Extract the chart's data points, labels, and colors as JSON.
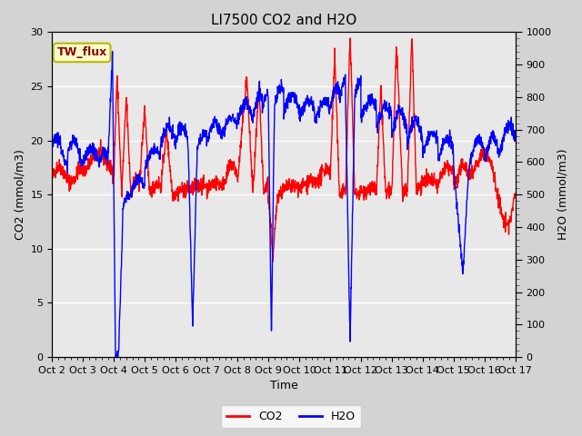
{
  "title": "LI7500 CO2 and H2O",
  "xlabel": "Time",
  "ylabel_left": "CO2 (mmol/m3)",
  "ylabel_right": "H2O (mmol/m3)",
  "xlim": [
    0,
    15
  ],
  "ylim_left": [
    0,
    30
  ],
  "ylim_right": [
    0,
    1000
  ],
  "yticks_left": [
    0,
    5,
    10,
    15,
    20,
    25,
    30
  ],
  "yticks_right": [
    0,
    100,
    200,
    300,
    400,
    500,
    600,
    700,
    800,
    900,
    1000
  ],
  "xtick_labels": [
    "Oct 2",
    "Oct 3",
    "Oct 4",
    "Oct 5",
    "Oct 6",
    "Oct 7",
    "Oct 8",
    "Oct 9",
    "Oct 10",
    "Oct 11",
    "Oct 12",
    "Oct 13",
    "Oct 14",
    "Oct 15",
    "Oct 16",
    "Oct 17"
  ],
  "co2_color": "#ff0000",
  "h2o_color": "#0000ff",
  "fig_bg_color": "#d3d3d3",
  "plot_bg_color": "#e8e8e8",
  "annotation_text": "TW_flux",
  "annotation_facecolor": "#ffffcc",
  "annotation_edgecolor": "#b8b800",
  "line_width": 1.0,
  "title_fontsize": 11,
  "tick_fontsize": 8,
  "label_fontsize": 9,
  "legend_fontsize": 9,
  "grid_color": "#ffffff",
  "grid_lw": 1.0,
  "minor_tick_color": "#555555"
}
